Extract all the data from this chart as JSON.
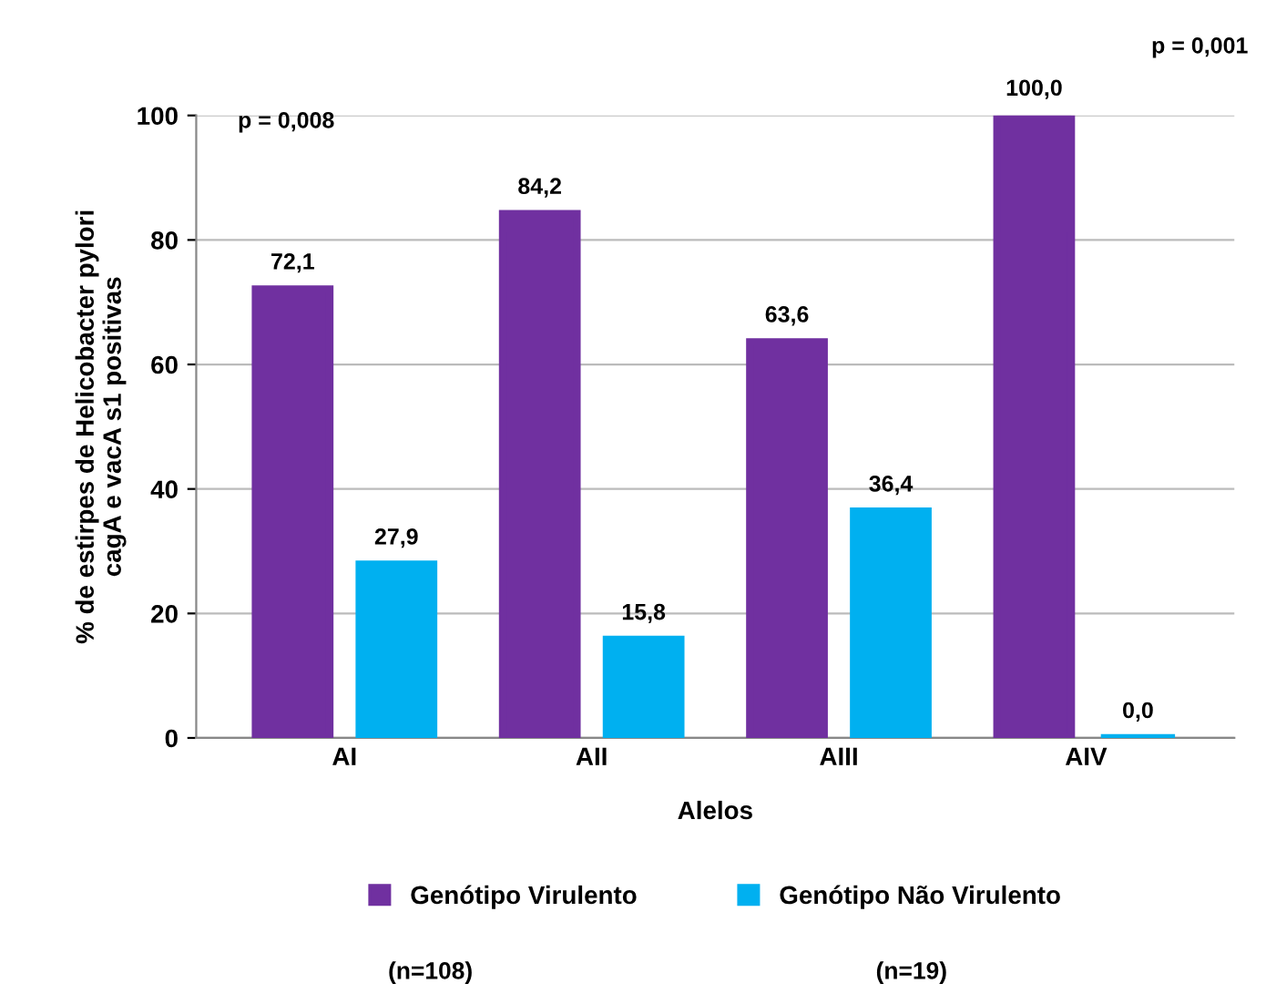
{
  "chart_data": {
    "type": "bar",
    "xlabel": "Alelos",
    "ylabel": "% de estirpes de Helicobacter pylori\ncagA e vacA s1 positivas",
    "categories": [
      "AI",
      "AII",
      "AIII",
      "AIV"
    ],
    "series": [
      {
        "name": "Genótipo Virulento",
        "color": "#7030a0",
        "values": [
          72.1,
          84.2,
          63.6,
          100.0
        ],
        "value_labels": [
          "72,1",
          "84,2",
          "63,6",
          "100,0"
        ]
      },
      {
        "name": "Genótipo Não Virulento",
        "color": "#00b0f0",
        "values": [
          27.9,
          15.8,
          36.4,
          0.0
        ],
        "value_labels": [
          "27,9",
          "15,8",
          "36,4",
          "0,0"
        ]
      }
    ],
    "ylim": [
      0,
      100
    ],
    "yticks": [
      0,
      20,
      40,
      60,
      80,
      100
    ],
    "grid": "y",
    "legend": "bottom",
    "annotations": [
      "p = 0,008",
      "p = 0,001",
      "(n=108)",
      "(n=19)"
    ]
  }
}
